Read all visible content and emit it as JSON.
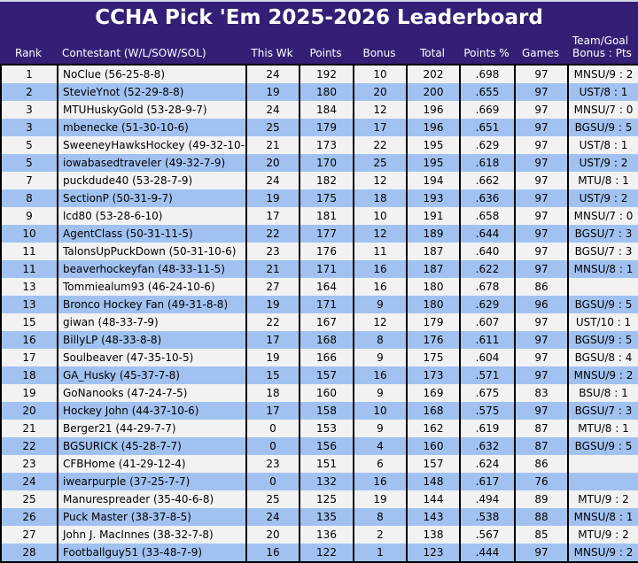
{
  "title": "CCHA Pick 'Em 2025-2026 Leaderboard",
  "colors": {
    "background_purple": "#351F76",
    "row_light": "#F2F2F2",
    "row_blue": "#A1C2F0",
    "border_black": "#000000",
    "header_text": "#FFFFFF",
    "top_strip": "#D6D6E6"
  },
  "columns": [
    {
      "key": "rank",
      "label": "Rank"
    },
    {
      "key": "contestant",
      "label": "Contestant (W/L/SOW/SOL)",
      "halign": "left",
      "cell_align": "left"
    },
    {
      "key": "this_wk",
      "label": "This Wk"
    },
    {
      "key": "points",
      "label": "Points"
    },
    {
      "key": "bonus",
      "label": "Bonus"
    },
    {
      "key": "total",
      "label": "Total"
    },
    {
      "key": "points_pct",
      "label": "Points %"
    },
    {
      "key": "games",
      "label": "Games"
    },
    {
      "key": "team_goal",
      "label": "Team/Goal",
      "label2": "Bonus : Pts",
      "halign": "left"
    }
  ],
  "rows": [
    [
      "1",
      "NoClue (56-25-8-8)",
      "24",
      "192",
      "10",
      "202",
      ".698",
      "97",
      "MNSU/9 : 2"
    ],
    [
      "2",
      "StevieYnot (52-29-8-8)",
      "19",
      "180",
      "20",
      "200",
      ".655",
      "97",
      "UST/8 : 1"
    ],
    [
      "3",
      "MTUHuskyGold (53-28-9-7)",
      "24",
      "184",
      "12",
      "196",
      ".669",
      "97",
      "MNSU/7 : 0"
    ],
    [
      "3",
      "mbenecke (51-30-10-6)",
      "25",
      "179",
      "17",
      "196",
      ".651",
      "97",
      "BGSU/9 : 5"
    ],
    [
      "5",
      "SweeneyHawksHockey (49-32-10-6)",
      "21",
      "173",
      "22",
      "195",
      ".629",
      "97",
      "UST/8 : 1"
    ],
    [
      "5",
      "iowabasedtraveler (49-32-7-9)",
      "20",
      "170",
      "25",
      "195",
      ".618",
      "97",
      "UST/9 : 2"
    ],
    [
      "7",
      "puckdude40 (53-28-7-9)",
      "24",
      "182",
      "12",
      "194",
      ".662",
      "97",
      "MTU/8 : 1"
    ],
    [
      "8",
      "SectionP (50-31-9-7)",
      "19",
      "175",
      "18",
      "193",
      ".636",
      "97",
      "UST/9 : 2"
    ],
    [
      "9",
      "lcd80 (53-28-6-10)",
      "17",
      "181",
      "10",
      "191",
      ".658",
      "97",
      "MNSU/7 : 0"
    ],
    [
      "10",
      "AgentClass (50-31-11-5)",
      "22",
      "177",
      "12",
      "189",
      ".644",
      "97",
      "BGSU/7 : 3"
    ],
    [
      "11",
      "TalonsUpPuckDown (50-31-10-6)",
      "23",
      "176",
      "11",
      "187",
      ".640",
      "97",
      "BGSU/7 : 3"
    ],
    [
      "11",
      "beaverhockeyfan (48-33-11-5)",
      "21",
      "171",
      "16",
      "187",
      ".622",
      "97",
      "MNSU/8 : 1"
    ],
    [
      "13",
      "Tommiealum93 (46-24-10-6)",
      "27",
      "164",
      "16",
      "180",
      ".678",
      "86",
      ""
    ],
    [
      "13",
      "Bronco Hockey Fan (49-31-8-8)",
      "19",
      "171",
      "9",
      "180",
      ".629",
      "96",
      "BGSU/9 : 5"
    ],
    [
      "15",
      "giwan (48-33-7-9)",
      "22",
      "167",
      "12",
      "179",
      ".607",
      "97",
      "UST/10 : 1"
    ],
    [
      "16",
      "BillyLP (48-33-8-8)",
      "17",
      "168",
      "8",
      "176",
      ".611",
      "97",
      "BGSU/9 : 5"
    ],
    [
      "17",
      "Soulbeaver (47-35-10-5)",
      "19",
      "166",
      "9",
      "175",
      ".604",
      "97",
      "BGSU/8 : 4"
    ],
    [
      "18",
      "GA_Husky (45-37-7-8)",
      "15",
      "157",
      "16",
      "173",
      ".571",
      "97",
      "MNSU/9 : 2"
    ],
    [
      "19",
      "GoNanooks (47-24-7-5)",
      "18",
      "160",
      "9",
      "169",
      ".675",
      "83",
      "BSU/8 : 1"
    ],
    [
      "20",
      "Hockey John (44-37-10-6)",
      "17",
      "158",
      "10",
      "168",
      ".575",
      "97",
      "BGSU/7 : 3"
    ],
    [
      "21",
      "Berger21 (44-29-7-7)",
      "0",
      "153",
      "9",
      "162",
      ".619",
      "87",
      "MTU/8 : 1"
    ],
    [
      "22",
      "BGSURICK (45-28-7-7)",
      "0",
      "156",
      "4",
      "160",
      ".632",
      "87",
      "BGSU/9 : 5"
    ],
    [
      "23",
      "CFBHome (41-29-12-4)",
      "23",
      "151",
      "6",
      "157",
      ".624",
      "86",
      ""
    ],
    [
      "24",
      "iwearpurple (37-25-7-7)",
      "0",
      "132",
      "16",
      "148",
      ".617",
      "76",
      ""
    ],
    [
      "25",
      "Manurespreader (35-40-6-8)",
      "25",
      "125",
      "19",
      "144",
      ".494",
      "89",
      "MTU/9 : 2"
    ],
    [
      "26",
      "Puck Master (38-37-8-5)",
      "24",
      "135",
      "8",
      "143",
      ".538",
      "88",
      "MNSU/8 : 1"
    ],
    [
      "27",
      "John J. MacInnes (38-32-7-8)",
      "20",
      "136",
      "2",
      "138",
      ".567",
      "85",
      "MTU/9 : 2"
    ],
    [
      "28",
      "Footballguy51 (33-48-7-9)",
      "16",
      "122",
      "1",
      "123",
      ".444",
      "97",
      "MNSU/9 : 2"
    ]
  ]
}
